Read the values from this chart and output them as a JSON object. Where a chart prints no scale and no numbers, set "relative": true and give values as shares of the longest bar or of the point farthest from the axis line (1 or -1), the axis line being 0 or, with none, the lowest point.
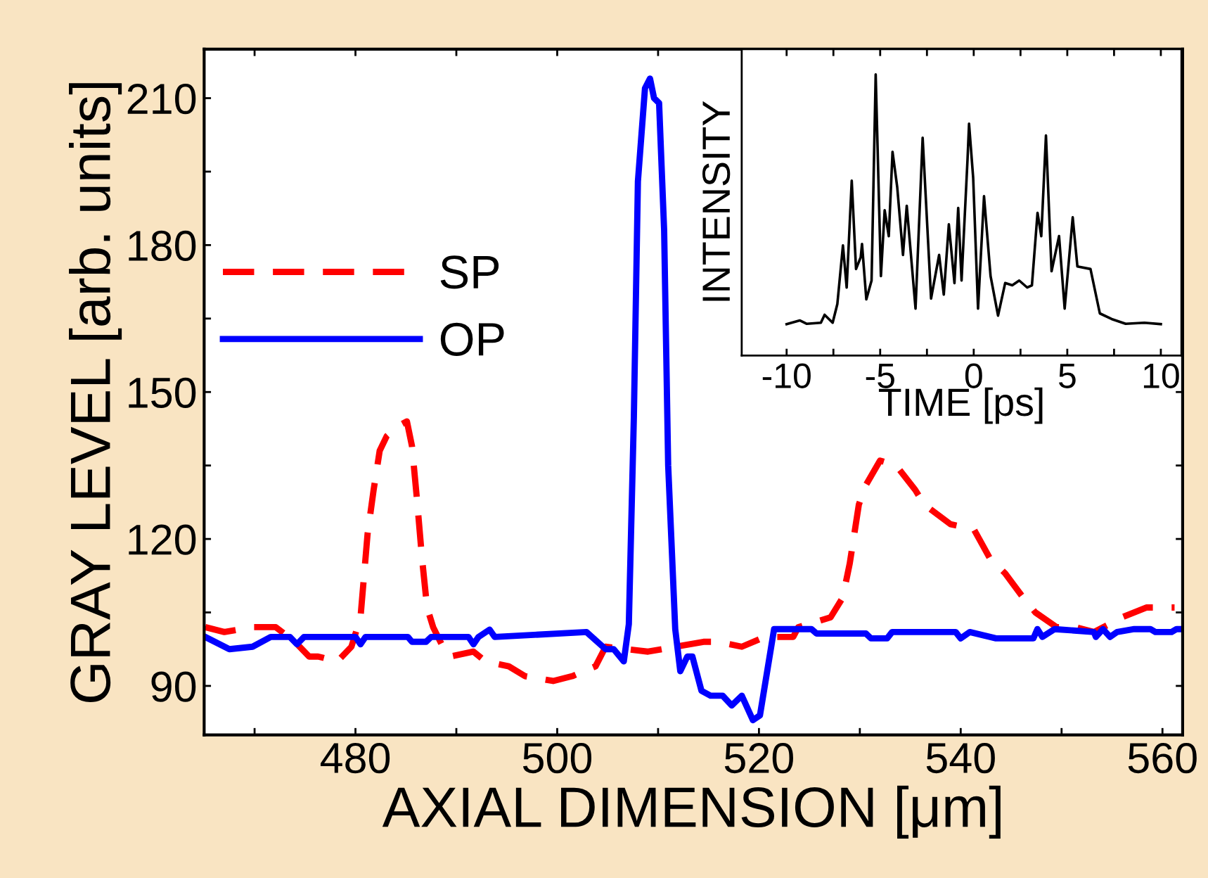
{
  "chart_data": [
    {
      "type": "line",
      "xlabel": "AXIAL DIMENSION [μm]",
      "ylabel": "GRAY LEVEL [arb. units]",
      "xlim": [
        465,
        562
      ],
      "ylim": [
        80,
        220
      ],
      "xticks": [
        {
          "value": 470,
          "label": null
        },
        480,
        {
          "value": 490,
          "label": null
        },
        500,
        {
          "value": 510,
          "label": null
        },
        520,
        {
          "value": 530,
          "label": null
        },
        540,
        {
          "value": 550,
          "label": null
        },
        560
      ],
      "yticks": [
        90,
        {
          "value": 105,
          "label": null
        },
        120,
        {
          "value": 135,
          "label": null
        },
        150,
        {
          "value": 165,
          "label": null
        },
        180,
        {
          "value": 195,
          "label": null
        },
        210
      ],
      "legend": "left",
      "grid": false,
      "series": [
        {
          "name": "SP",
          "color": "#ff0000",
          "line_style": "dashed",
          "x": [
            465.1,
            467,
            469.8,
            472.1,
            474,
            475.4,
            476.3,
            478.2,
            479.6,
            480.5,
            481.2,
            481.8,
            482.4,
            483.1,
            484.2,
            485.1,
            485.6,
            486.1,
            486.6,
            487.1,
            487.7,
            488.9,
            489.4,
            491.7,
            492.9,
            495.2,
            496.8,
            499.6,
            501.5,
            503.8,
            504.8,
            509,
            514.5,
            515.9,
            518.3,
            520.6,
            523.4,
            523.9,
            527.1,
            528.3,
            529,
            529.9,
            530.6,
            532,
            533.6,
            535.5,
            536.4,
            539,
            541.3,
            542.9,
            544.4,
            546.2,
            547.4,
            549.5,
            551.4,
            553.2,
            555.1,
            556,
            558.4,
            561.2
          ],
          "values": [
            102,
            101,
            102,
            102,
            99,
            96,
            96,
            95,
            98,
            104,
            121,
            130,
            138,
            141,
            143,
            144,
            139,
            128,
            116,
            106,
            102,
            97,
            96,
            97,
            95,
            94,
            92,
            91,
            92,
            94,
            98,
            97,
            99,
            99,
            98,
            100,
            100,
            102,
            104,
            108,
            115,
            127,
            131,
            136,
            135,
            130,
            127,
            123,
            122,
            116,
            113,
            108,
            105,
            102,
            102,
            101,
            103,
            104,
            106,
            106
          ]
        },
        {
          "name": "OP",
          "color": "#0000ff",
          "line_style": "solid",
          "x": [
            465.1,
            467.5,
            469.8,
            471.6,
            473.5,
            474.2,
            474.9,
            480,
            480.5,
            481,
            485.2,
            485.6,
            487,
            487.5,
            491.2,
            491.7,
            492.2,
            493.3,
            493.8,
            502.9,
            504.8,
            505.6,
            506.6,
            507.1,
            507.6,
            508,
            508.7,
            509.2,
            509.6,
            510.1,
            510.6,
            511,
            511.7,
            512.2,
            512.9,
            513.4,
            514.3,
            515.2,
            516.4,
            517.3,
            518.3,
            519.4,
            520.1,
            521.5,
            525.2,
            525.7,
            530.6,
            531.1,
            532.7,
            533.2,
            539.5,
            540,
            540.9,
            543.5,
            547.2,
            547.6,
            548.1,
            549.3,
            553.2,
            553.4,
            554.1,
            554.8,
            555.5,
            557.2,
            558.8,
            559.3,
            560.9,
            561.4,
            562
          ],
          "values": [
            100,
            97.5,
            98,
            100,
            100,
            98.5,
            100,
            100,
            98.5,
            100,
            100,
            99,
            99,
            100,
            100,
            98.5,
            100,
            101.5,
            100,
            101,
            97.5,
            97.5,
            95,
            102.6,
            145,
            193,
            212,
            214,
            210,
            209,
            183,
            135,
            101.6,
            93,
            96,
            96,
            89,
            88,
            88,
            86,
            88,
            83,
            84,
            101.6,
            101.6,
            100.7,
            100.7,
            99.7,
            99.7,
            101,
            101,
            99.7,
            101,
            99.7,
            99.7,
            101.6,
            100,
            101.6,
            101,
            100,
            101.6,
            100,
            101,
            101.6,
            101.6,
            101,
            101,
            101.6,
            101.6
          ]
        }
      ]
    },
    {
      "type": "line",
      "xlabel": "TIME [ps]",
      "ylabel": "INTENSITY",
      "relative": true,
      "xlim": [
        -12.4,
        11.1
      ],
      "xticks": [
        -10,
        {
          "value": -7.5,
          "label": null
        },
        -5,
        {
          "value": -2.5,
          "label": null
        },
        0,
        {
          "value": 2.5,
          "label": null
        },
        5,
        {
          "value": 7.5,
          "label": null
        },
        10
      ],
      "legend": false,
      "grid": false,
      "series": [
        {
          "color": "#000000",
          "line_style": "solid",
          "x": [
            -10,
            -9.3,
            -8.92,
            -8.17,
            -7.97,
            -7.54,
            -7.29,
            -6.99,
            -6.79,
            -6.52,
            -6.29,
            -6.04,
            -5.97,
            -5.74,
            -5.46,
            -5.24,
            -4.96,
            -4.76,
            -4.54,
            -4.34,
            -4.09,
            -3.78,
            -3.58,
            -3.11,
            -2.73,
            -2.28,
            -1.85,
            -1.6,
            -1.33,
            -1.03,
            -0.83,
            -0.65,
            -0.33,
            -0.25,
            -0.03,
            0.23,
            0.55,
            0.9,
            1.3,
            1.68,
            2.06,
            2.43,
            2.86,
            3.11,
            3.41,
            3.61,
            3.86,
            4.16,
            4.56,
            4.86,
            5.29,
            5.54,
            6.24,
            6.74,
            7.37,
            8.12,
            9.12,
            10
          ],
          "values": [
            0.112,
            0.125,
            0.113,
            0.117,
            0.145,
            0.117,
            0.183,
            0.392,
            0.242,
            0.622,
            0.308,
            0.35,
            0.397,
            0.2,
            0.267,
            1,
            0.283,
            0.517,
            0.425,
            0.725,
            0.6,
            0.358,
            0.533,
            0.167,
            0.775,
            0.203,
            0.358,
            0.217,
            0.467,
            0.258,
            0.525,
            0.267,
            0.7,
            0.825,
            0.633,
            0.167,
            0.567,
            0.283,
            0.142,
            0.258,
            0.25,
            0.267,
            0.242,
            0.25,
            0.508,
            0.425,
            0.783,
            0.3,
            0.425,
            0.167,
            0.492,
            0.317,
            0.308,
            0.15,
            0.13,
            0.113,
            0.117,
            0.112
          ]
        }
      ]
    }
  ]
}
